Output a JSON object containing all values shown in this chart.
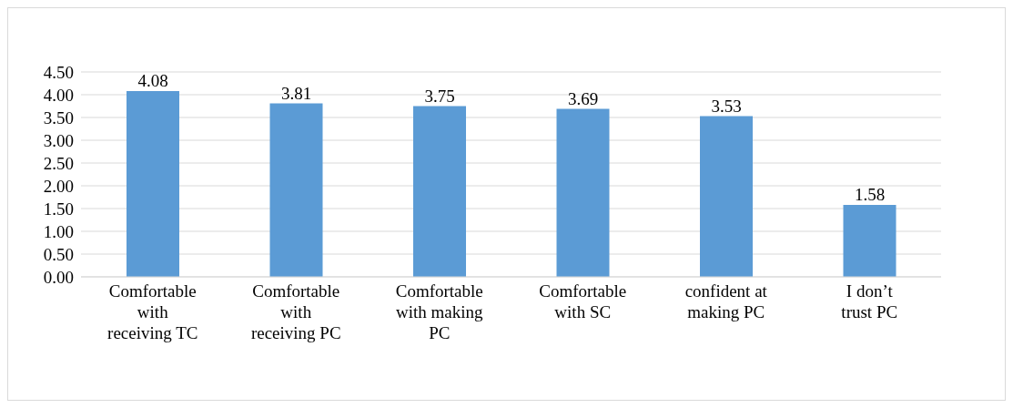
{
  "chart_data": {
    "type": "bar",
    "categories": [
      "Comfortable with receiving TC",
      "Comfortable with receiving PC",
      "Comfortable with making PC",
      "Comfortable with SC",
      "confident at making PC",
      "I don’t trust PC"
    ],
    "values": [
      4.08,
      3.81,
      3.75,
      3.69,
      3.53,
      1.58
    ],
    "color": "#5b9bd5",
    "ylim": [
      0,
      4.5
    ],
    "yticks": [
      {
        "value": 0,
        "label": "0.00"
      },
      {
        "value": 0.5,
        "label": "0.50"
      },
      {
        "value": 1,
        "label": "1.00"
      },
      {
        "value": 1.5,
        "label": "1.50"
      },
      {
        "value": 2,
        "label": "2.00"
      },
      {
        "value": 2.5,
        "label": "2.50"
      },
      {
        "value": 3,
        "label": "3.00"
      },
      {
        "value": 3.5,
        "label": "3.50"
      },
      {
        "value": 4,
        "label": "4.00"
      },
      {
        "value": 4.5,
        "label": "4.50"
      }
    ],
    "grid": "y",
    "data_labels": true
  }
}
